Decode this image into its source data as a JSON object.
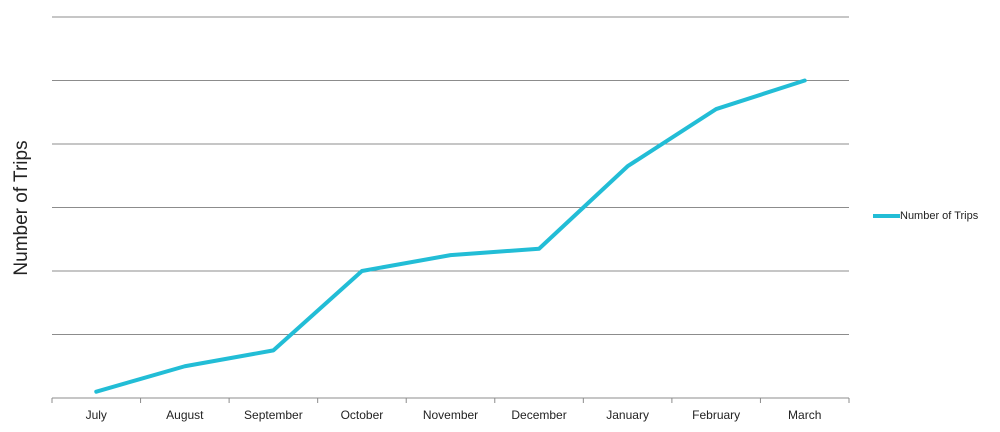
{
  "chart_data": {
    "type": "line",
    "y_label": "Number of Trips",
    "categories": [
      "July",
      "August",
      "September",
      "October",
      "November",
      "December",
      "January",
      "February",
      "March"
    ],
    "series": [
      {
        "name": "Number of Trips",
        "color": "#22bdd6",
        "values": [
          0.1,
          0.5,
          0.75,
          2.0,
          2.25,
          2.35,
          3.65,
          4.55,
          5.0
        ]
      }
    ],
    "ylim": [
      0,
      6
    ],
    "yticks": [
      0,
      1,
      2,
      3,
      4,
      5,
      6
    ],
    "show_ytick_labels": false,
    "grid": true,
    "legend": "right"
  }
}
